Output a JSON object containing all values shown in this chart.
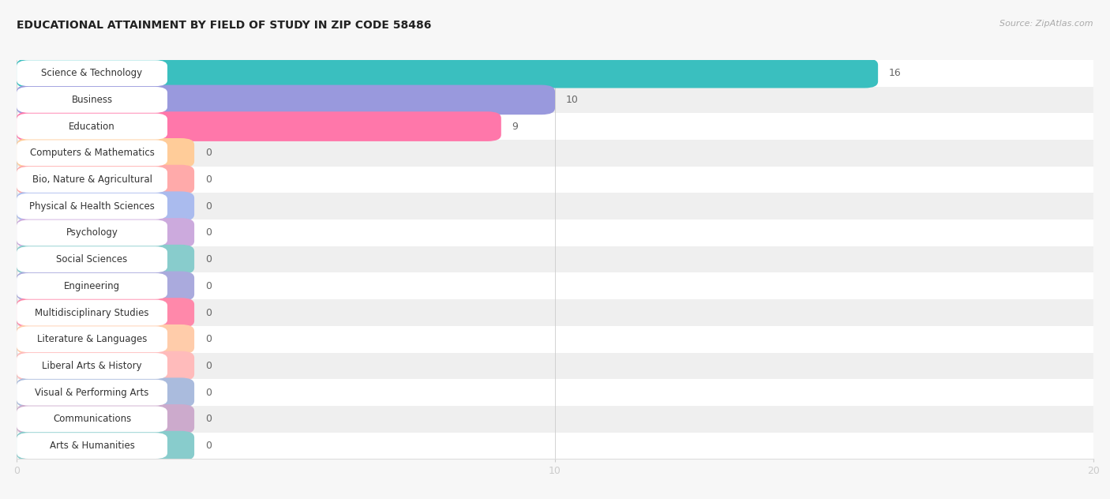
{
  "title": "EDUCATIONAL ATTAINMENT BY FIELD OF STUDY IN ZIP CODE 58486",
  "source": "Source: ZipAtlas.com",
  "categories": [
    "Science & Technology",
    "Business",
    "Education",
    "Computers & Mathematics",
    "Bio, Nature & Agricultural",
    "Physical & Health Sciences",
    "Psychology",
    "Social Sciences",
    "Engineering",
    "Multidisciplinary Studies",
    "Literature & Languages",
    "Liberal Arts & History",
    "Visual & Performing Arts",
    "Communications",
    "Arts & Humanities"
  ],
  "values": [
    16,
    10,
    9,
    0,
    0,
    0,
    0,
    0,
    0,
    0,
    0,
    0,
    0,
    0,
    0
  ],
  "bar_colors": [
    "#3abfbf",
    "#9999dd",
    "#ff77aa",
    "#ffcc99",
    "#ffaaaa",
    "#aabbee",
    "#ccaadd",
    "#88cccc",
    "#aaaadd",
    "#ff88aa",
    "#ffccaa",
    "#ffbbbb",
    "#aabbdd",
    "#ccaacc",
    "#88cccc"
  ],
  "zero_bar_width": 3.2,
  "xlim": [
    0,
    20
  ],
  "xticks": [
    0,
    10,
    20
  ],
  "background_color": "#f7f7f7",
  "row_bg_colors": [
    "#ffffff",
    "#efefef"
  ],
  "bar_height": 0.62,
  "title_fontsize": 10,
  "source_fontsize": 8,
  "label_fontsize": 8.5,
  "value_fontsize": 9
}
